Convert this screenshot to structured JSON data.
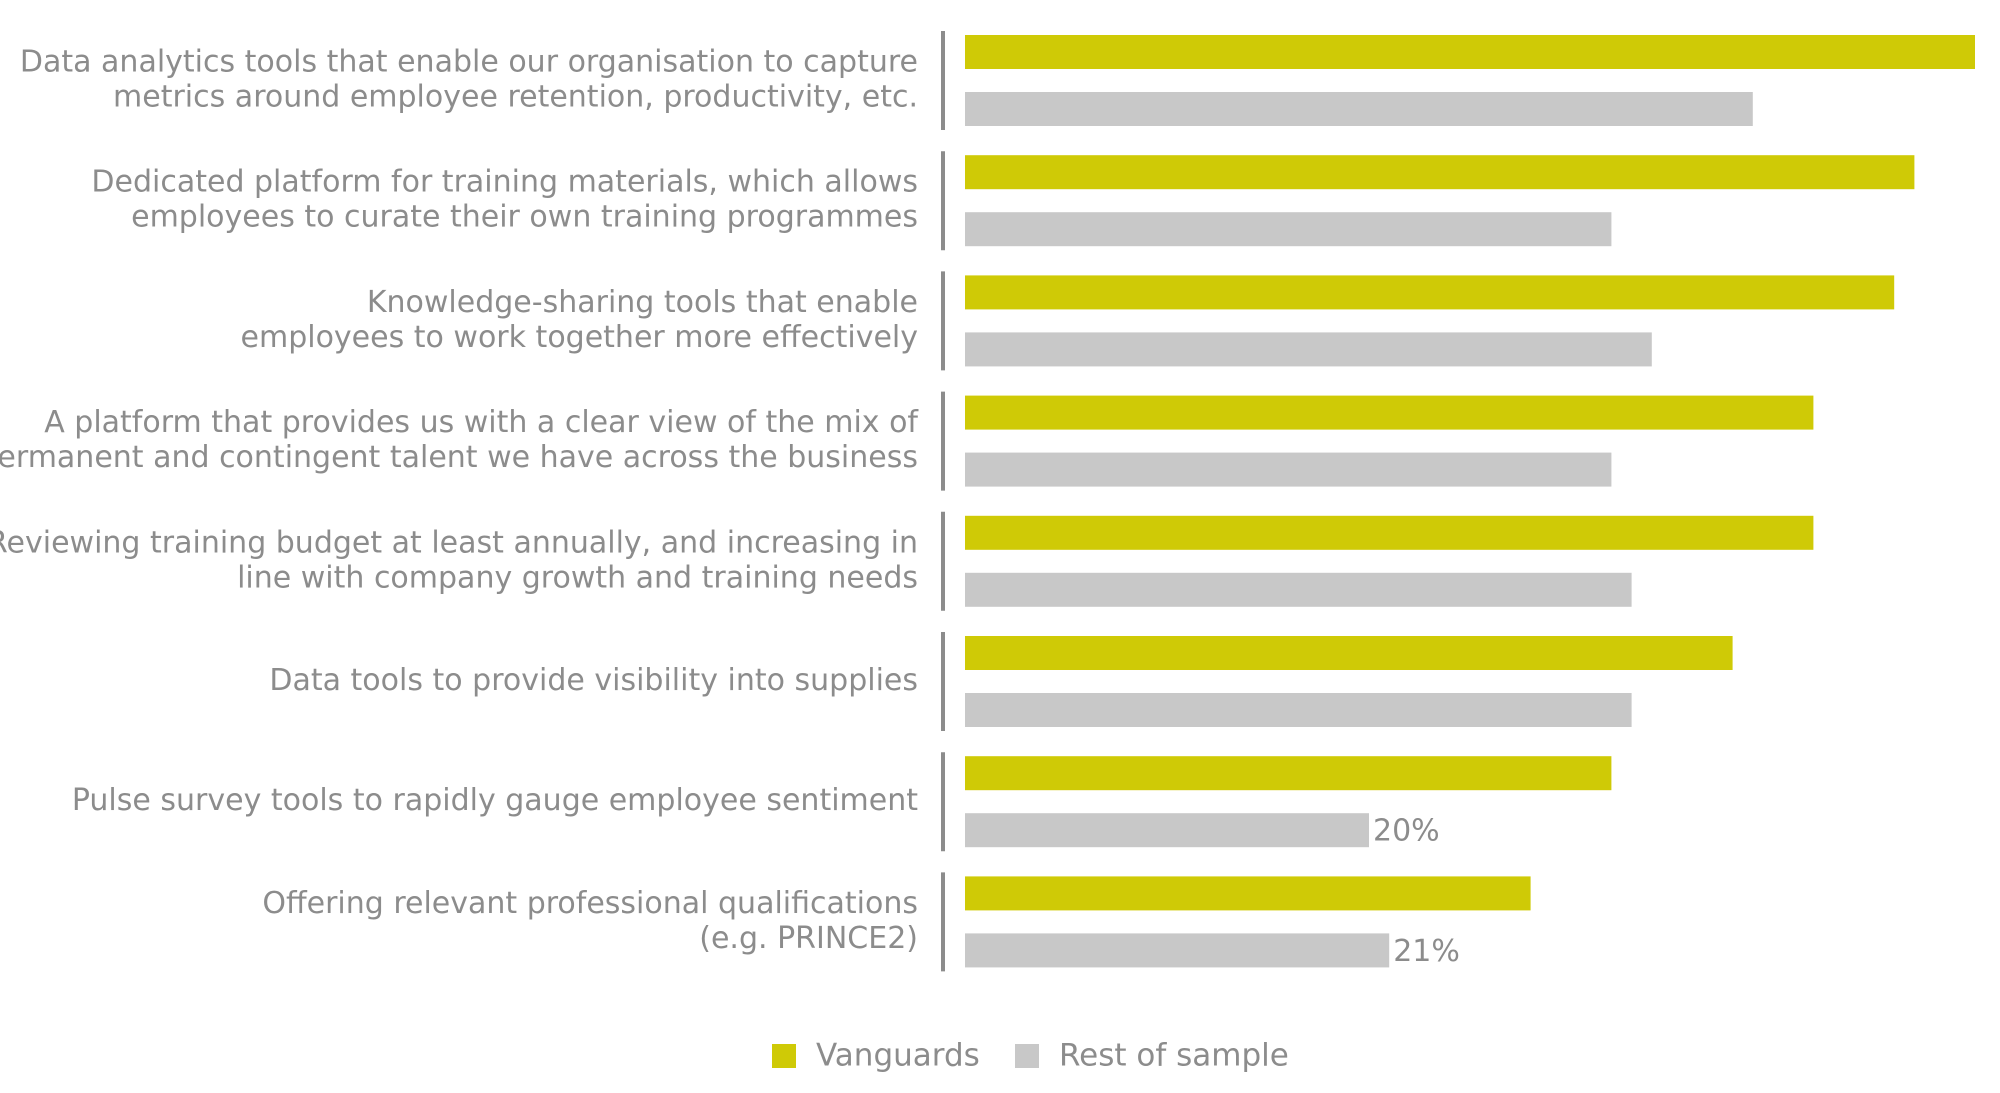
{
  "chart_data": {
    "type": "bar",
    "orientation": "horizontal",
    "categories": [
      [
        "Data analytics tools that enable our organisation to capture",
        "metrics around employee retention, productivity, etc."
      ],
      [
        "Dedicated platform for training materials, which allows",
        "employees to curate their own training programmes"
      ],
      [
        "Knowledge-sharing tools that enable",
        "employees to work together more effectively"
      ],
      [
        "A platform that provides us with a clear view of the mix of",
        "permanent and contingent talent we have across the business"
      ],
      [
        "Reviewing training budget at least annually, and increasing in",
        "line with company growth and training needs"
      ],
      [
        "Data tools to provide visibility into supplies"
      ],
      [
        "Pulse survey tools to rapidly gauge employee sentiment"
      ],
      [
        "Offering relevant professional qualifications",
        "(e.g. PRINCE2)"
      ]
    ],
    "series": [
      {
        "name": "Vanguards",
        "color": "#cfca06",
        "values": [
          50,
          47,
          46,
          42,
          42,
          38,
          32,
          28
        ]
      },
      {
        "name": "Rest of sample",
        "color": "#c8c8c8",
        "values": [
          39,
          32,
          34,
          32,
          33,
          33,
          20,
          21
        ]
      }
    ],
    "data_labels": [
      {
        "series": 1,
        "index": 6,
        "text": "20%"
      },
      {
        "series": 1,
        "index": 7,
        "text": "21%"
      }
    ],
    "xlim": [
      0,
      50
    ],
    "legend_position": "bottom-center",
    "title": "",
    "xlabel": "",
    "ylabel": ""
  },
  "colors": {
    "label_text": "#8c8c8c",
    "axis_line": "#8c8c8c"
  }
}
